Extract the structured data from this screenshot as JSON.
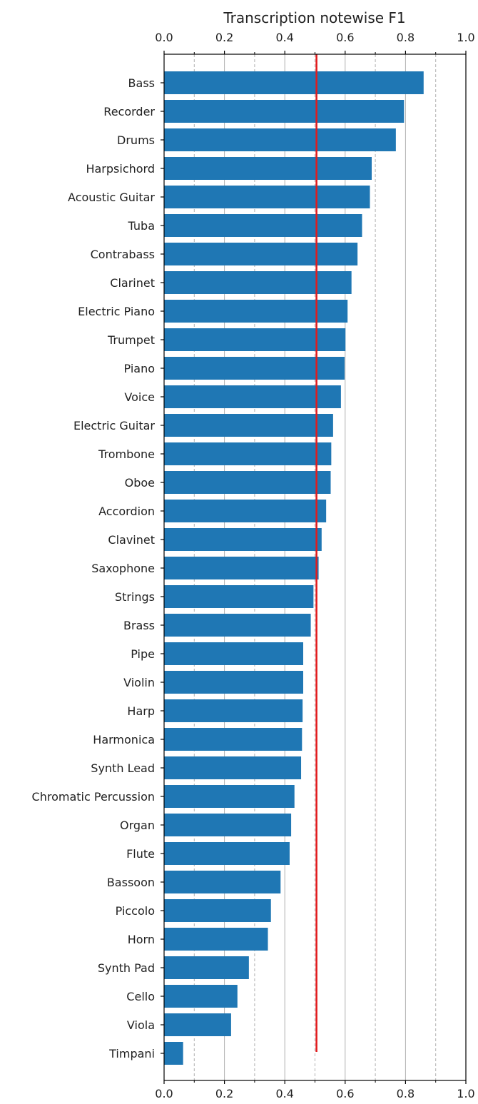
{
  "chart_data": {
    "type": "bar",
    "orientation": "horizontal",
    "title": "Transcription notewise F1",
    "xlabel": "",
    "ylabel": "",
    "xlim": [
      0.0,
      1.0
    ],
    "xticks": [
      "0.0",
      "0.2",
      "0.4",
      "0.6",
      "0.8",
      "1.0"
    ],
    "xtick_values": [
      0.0,
      0.2,
      0.4,
      0.6,
      0.8,
      1.0
    ],
    "minor_xtick_values": [
      0.1,
      0.3,
      0.5,
      0.7,
      0.9
    ],
    "grid": true,
    "reference_line": {
      "x": 0.505,
      "color": "#e31a1c"
    },
    "bar_color": "#1f77b4",
    "categories": [
      "Bass",
      "Recorder",
      "Drums",
      "Harpsichord",
      "Acoustic Guitar",
      "Tuba",
      "Contrabass",
      "Clarinet",
      "Electric Piano",
      "Trumpet",
      "Piano",
      "Voice",
      "Electric Guitar",
      "Trombone",
      "Oboe",
      "Accordion",
      "Clavinet",
      "Saxophone",
      "Strings",
      "Brass",
      "Pipe",
      "Violin",
      "Harp",
      "Harmonica",
      "Synth Lead",
      "Chromatic Percussion",
      "Organ",
      "Flute",
      "Bassoon",
      "Piccolo",
      "Horn",
      "Synth Pad",
      "Cello",
      "Viola",
      "Timpani"
    ],
    "values": [
      0.86,
      0.795,
      0.768,
      0.688,
      0.682,
      0.656,
      0.641,
      0.621,
      0.608,
      0.601,
      0.598,
      0.586,
      0.56,
      0.554,
      0.552,
      0.537,
      0.522,
      0.512,
      0.495,
      0.486,
      0.461,
      0.461,
      0.459,
      0.457,
      0.454,
      0.432,
      0.421,
      0.416,
      0.386,
      0.354,
      0.344,
      0.281,
      0.243,
      0.222,
      0.063
    ]
  }
}
